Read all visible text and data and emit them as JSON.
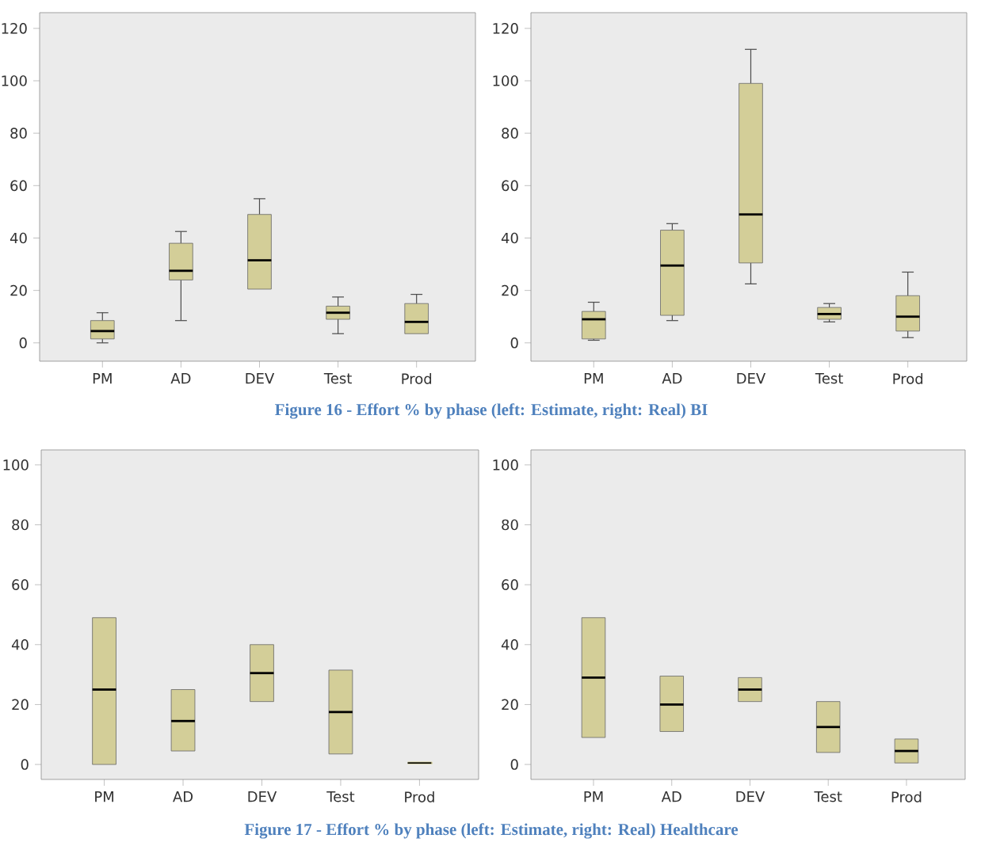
{
  "chart_data": [
    {
      "type": "box",
      "categories": [
        "PM",
        "AD",
        "DEV",
        "Test",
        "Prod"
      ],
      "color": "#d3ce98",
      "ylim": [
        -7,
        126
      ],
      "yticks": [
        0,
        20,
        40,
        60,
        80,
        100,
        120
      ],
      "grid": false,
      "boxes": [
        {
          "low": 0,
          "q1": 1.5,
          "median": 4.5,
          "q3": 8.5,
          "high": 11.5
        },
        {
          "low": 8.5,
          "q1": 24,
          "median": 27.5,
          "q3": 38,
          "high": 42.5
        },
        {
          "low": 20.5,
          "q1": 20.5,
          "median": 31.5,
          "q3": 49,
          "high": 55
        },
        {
          "low": 3.5,
          "q1": 9,
          "median": 11.5,
          "q3": 14,
          "high": 17.5
        },
        {
          "low": 3.5,
          "q1": 3.5,
          "median": 8,
          "q3": 15,
          "high": 18.5
        }
      ],
      "annotations": [
        "Figure 16 - Effort % by phase (left: Estimate, right: Real) BI"
      ]
    },
    {
      "type": "box",
      "categories": [
        "PM",
        "AD",
        "DEV",
        "Test",
        "Prod"
      ],
      "color": "#d3ce98",
      "ylim": [
        -7,
        126
      ],
      "yticks": [
        0,
        20,
        40,
        60,
        80,
        100,
        120
      ],
      "grid": false,
      "boxes": [
        {
          "low": 1,
          "q1": 1.5,
          "median": 9,
          "q3": 12,
          "high": 15.5
        },
        {
          "low": 8.5,
          "q1": 10.5,
          "median": 29.5,
          "q3": 43,
          "high": 45.5
        },
        {
          "low": 22.5,
          "q1": 30.5,
          "median": 49,
          "q3": 99,
          "high": 112
        },
        {
          "low": 8,
          "q1": 9,
          "median": 11,
          "q3": 13.5,
          "high": 15
        },
        {
          "low": 2,
          "q1": 4.5,
          "median": 10,
          "q3": 18,
          "high": 27
        }
      ]
    },
    {
      "type": "box",
      "categories": [
        "PM",
        "AD",
        "DEV",
        "Test",
        "Prod"
      ],
      "color": "#d3ce98",
      "ylim": [
        -5,
        105
      ],
      "yticks": [
        0,
        20,
        40,
        60,
        80,
        100
      ],
      "grid": false,
      "boxes": [
        {
          "low": 0,
          "q1": 0,
          "median": 25,
          "q3": 49,
          "high": 49
        },
        {
          "low": 4.5,
          "q1": 4.5,
          "median": 14.5,
          "q3": 25,
          "high": 25
        },
        {
          "low": 21,
          "q1": 21,
          "median": 30.5,
          "q3": 40,
          "high": 40
        },
        {
          "low": 3.5,
          "q1": 3.5,
          "median": 17.5,
          "q3": 31.5,
          "high": 31.5
        },
        {
          "low": 0.5,
          "q1": 0.5,
          "median": 0.5,
          "q3": 0.5,
          "high": 0.5
        }
      ],
      "annotations": [
        "Figure 17 - Effort % by phase (left: Estimate, right: Real) Healthcare"
      ]
    },
    {
      "type": "box",
      "categories": [
        "PM",
        "AD",
        "DEV",
        "Test",
        "Prod"
      ],
      "color": "#d3ce98",
      "ylim": [
        -5,
        105
      ],
      "yticks": [
        0,
        20,
        40,
        60,
        80,
        100
      ],
      "grid": false,
      "boxes": [
        {
          "low": 9,
          "q1": 9,
          "median": 29,
          "q3": 49,
          "high": 49
        },
        {
          "low": 11,
          "q1": 11,
          "median": 20,
          "q3": 29.5,
          "high": 29.5
        },
        {
          "low": 21,
          "q1": 21,
          "median": 25,
          "q3": 29,
          "high": 29
        },
        {
          "low": 4,
          "q1": 4,
          "median": 12.5,
          "q3": 21,
          "high": 21
        },
        {
          "low": 0.5,
          "q1": 0.5,
          "median": 4.5,
          "q3": 8.5,
          "high": 8.5
        }
      ]
    }
  ]
}
